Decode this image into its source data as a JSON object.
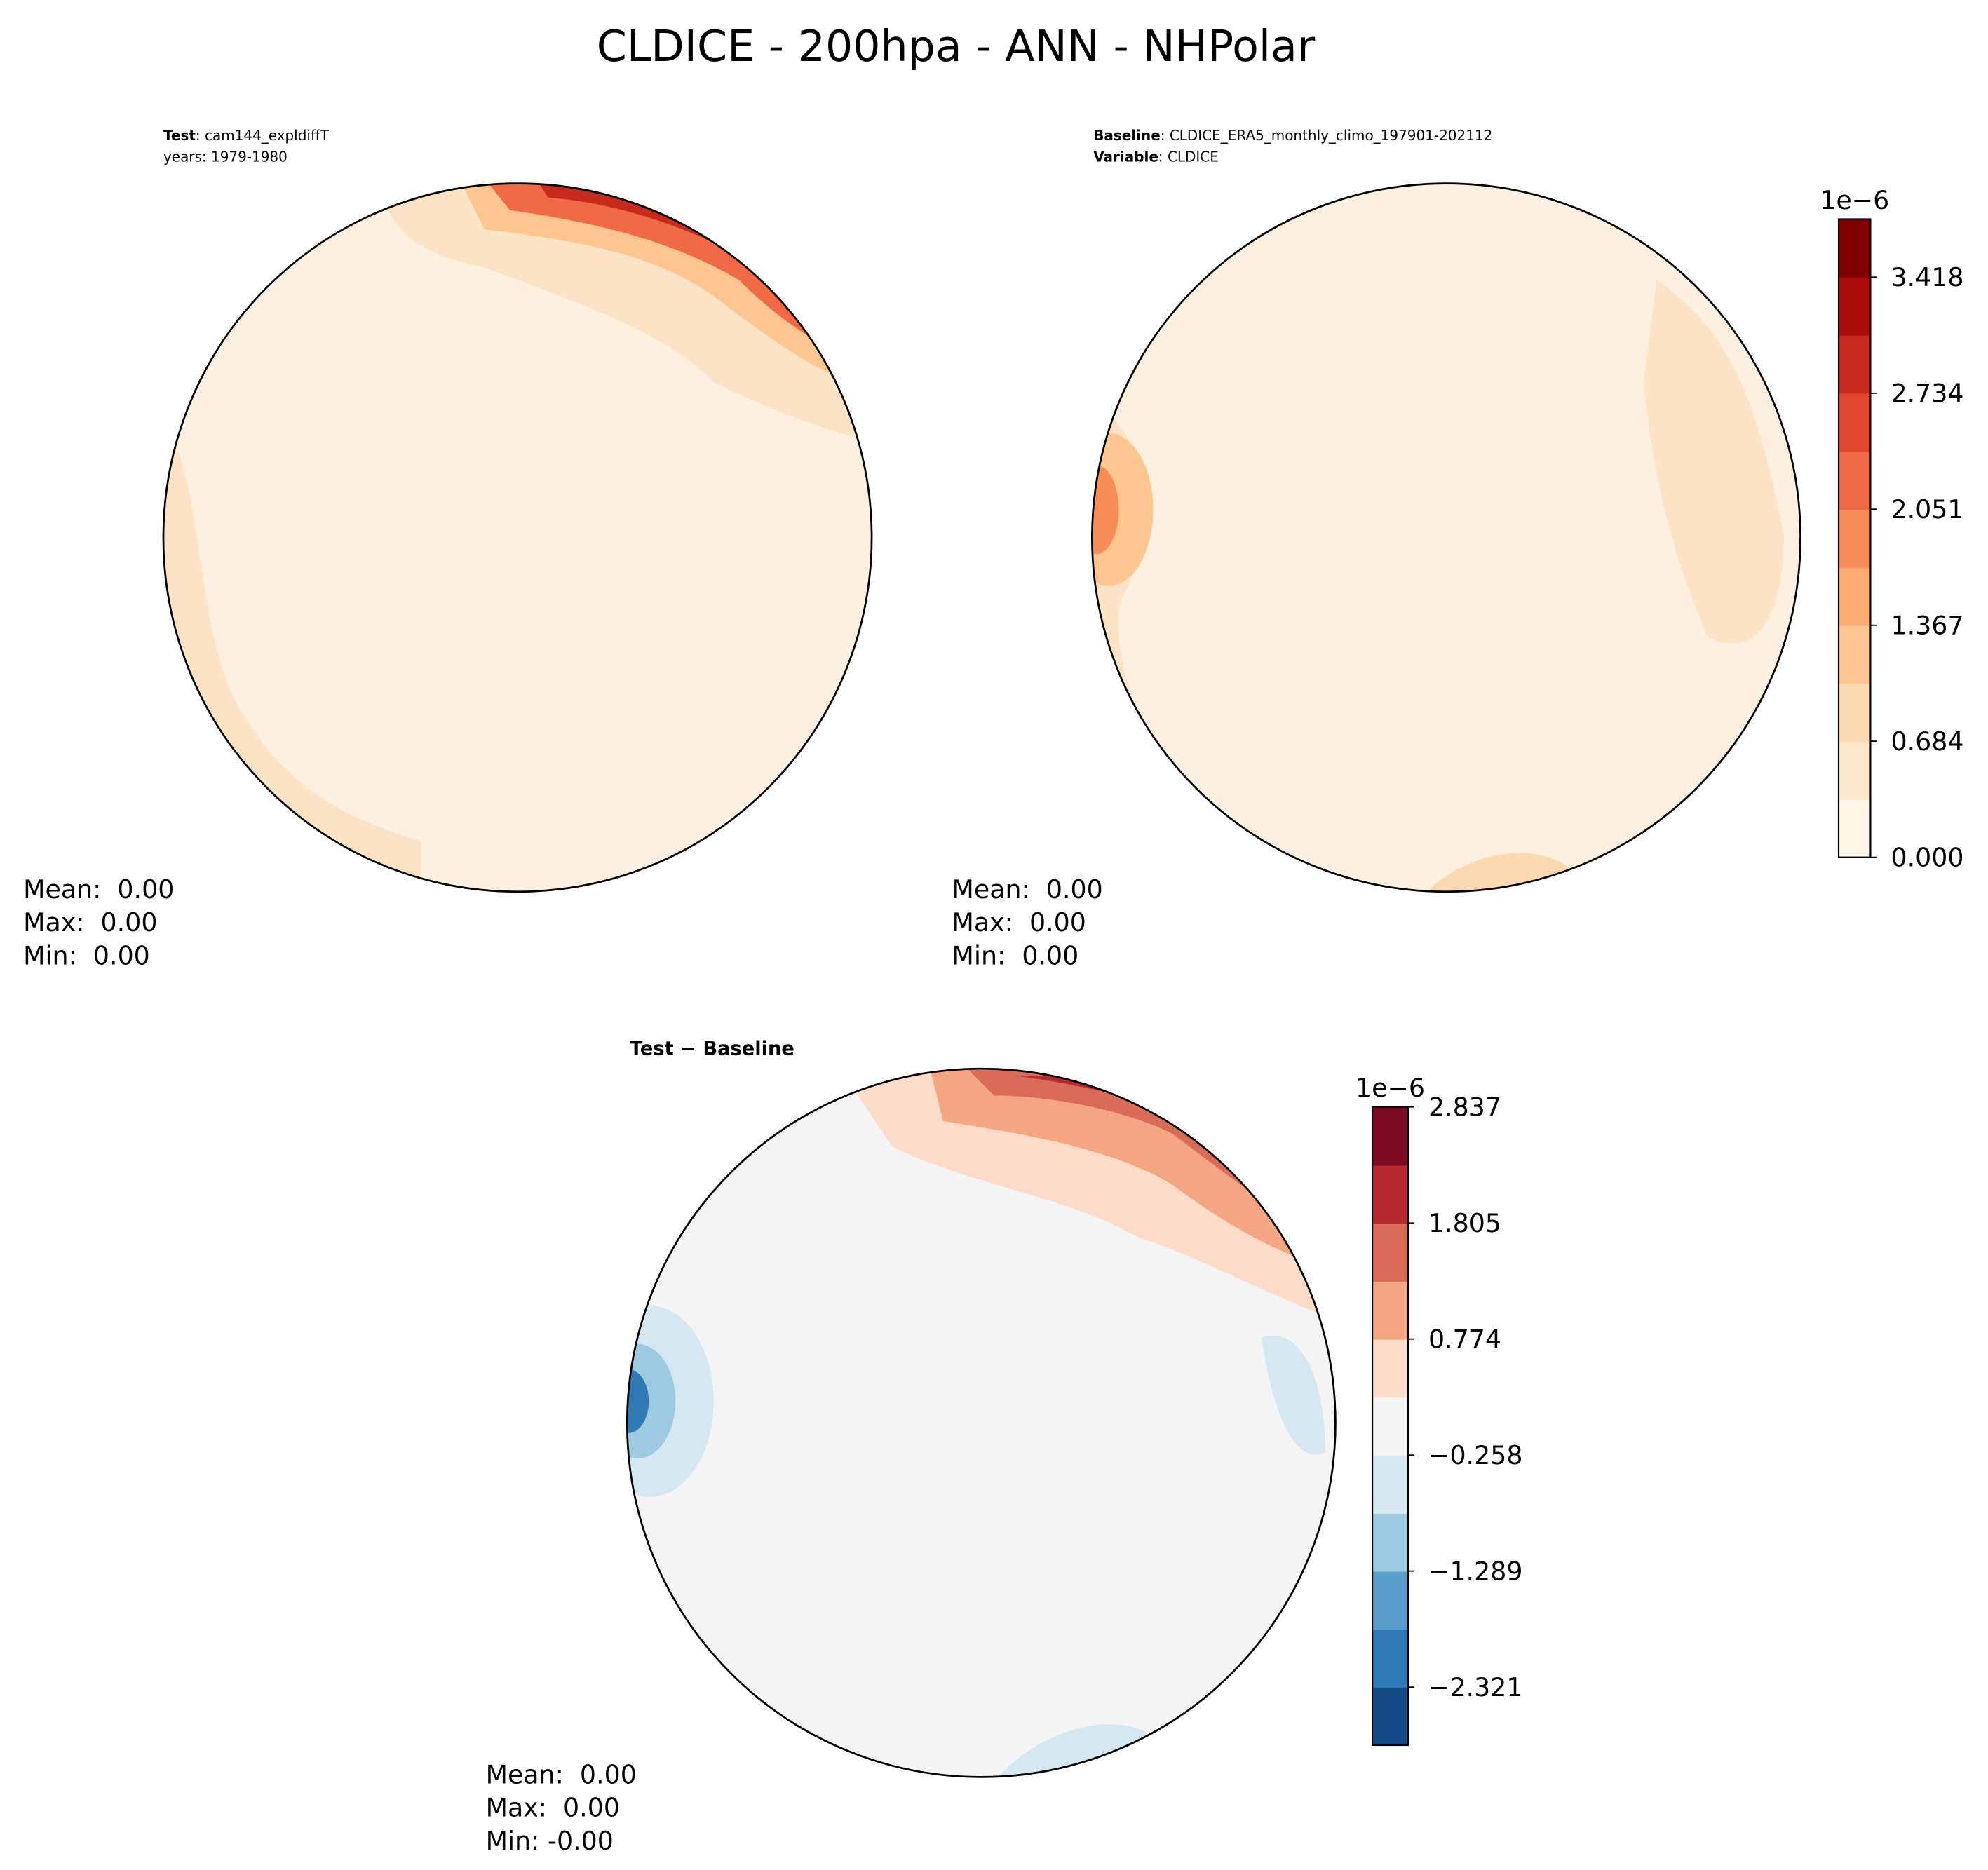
{
  "title": "CLDICE - 200hpa - ANN - NHPolar",
  "panels": [
    {
      "header": [
        {
          "label": "Test",
          "text": ": cam144_expldiffT"
        },
        {
          "text": "years: 1979-1980"
        }
      ],
      "stats": [
        "Mean:  0.00",
        "Max:  0.00",
        "Min:  0.00"
      ]
    },
    {
      "header": [
        {
          "label": "Baseline",
          "text": ": CLDICE_ERA5_monthly_climo_197901-202112"
        },
        {
          "label": "Variable",
          "text": ": CLDICE"
        }
      ],
      "stats": [
        "Mean:  0.00",
        "Max:  0.00",
        "Min:  0.00"
      ]
    },
    {
      "header": [
        {
          "label": "Test − Baseline"
        }
      ],
      "stats": [
        "Mean:  0.00",
        "Max:  0.00",
        "Min: -0.00"
      ]
    }
  ],
  "colorbars": [
    {
      "offset_label": "1e−6",
      "lim": [
        0,
        3.76
      ],
      "ticks": [
        {
          "value": 0,
          "label": "0.000"
        },
        {
          "value": 0.684,
          "label": "0.684"
        },
        {
          "value": 1.367,
          "label": "1.367"
        },
        {
          "value": 2.051,
          "label": "2.051"
        },
        {
          "value": 2.734,
          "label": "2.734"
        },
        {
          "value": 3.418,
          "label": "3.418"
        }
      ],
      "colors": [
        "#fff5e6",
        "#fde7cb",
        "#fdd9b1",
        "#fdc590",
        "#fcac73",
        "#f98d58",
        "#f06a45",
        "#e04530",
        "#c92a1e",
        "#ab0d0c",
        "#820000"
      ]
    },
    {
      "offset_label": "1e−6",
      "lim": [
        -2.837,
        2.837
      ],
      "ticks": [
        {
          "value": -2.321,
          "label": "−2.321"
        },
        {
          "value": -1.289,
          "label": "−1.289"
        },
        {
          "value": -0.258,
          "label": "−0.258"
        },
        {
          "value": 0.774,
          "label": "0.774"
        },
        {
          "value": 1.805,
          "label": "1.805"
        },
        {
          "value": 2.837,
          "label": "2.837"
        }
      ],
      "colors": [
        "#134b87",
        "#2f79b5",
        "#5a9ecc",
        "#9dcae0",
        "#d5e7f1",
        "#f4f4f4",
        "#fcdbc8",
        "#f4a683",
        "#d96b58",
        "#b8292f",
        "#7d0b22"
      ]
    }
  ]
}
